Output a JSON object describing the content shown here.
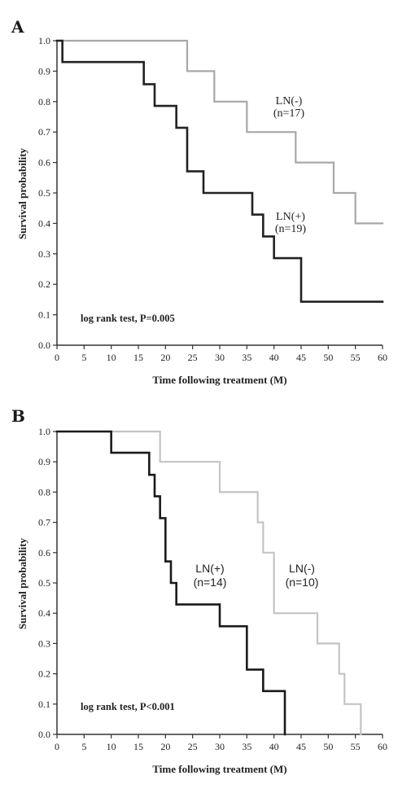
{
  "chart_data": [
    {
      "type": "line",
      "panel": "A",
      "xlabel": "Time following treatment (M)",
      "ylabel": "Survival probability",
      "xlim": [
        0,
        60
      ],
      "ylim": [
        0,
        1
      ],
      "x_ticks": [
        "0",
        "5",
        "10",
        "15",
        "20",
        "25",
        "30",
        "35",
        "40",
        "45",
        "50",
        "55",
        "60"
      ],
      "y_ticks": [
        "0.0",
        "0.1",
        "0.2",
        "0.3",
        "0.4",
        "0.5",
        "0.6",
        "0.7",
        "0.8",
        "0.9",
        "1.0"
      ],
      "annotation": "log rank test, P=0.005",
      "series": [
        {
          "group_label": "LN(-)",
          "n_label": "(n=17)",
          "color": "#a8a8a8",
          "steps": [
            [
              0,
              1.0
            ],
            [
              24,
              0.9
            ],
            [
              29,
              0.8
            ],
            [
              35,
              0.7
            ],
            [
              44,
              0.6
            ],
            [
              51,
              0.5
            ],
            [
              55,
              0.4
            ],
            [
              60,
              0.4
            ]
          ]
        },
        {
          "group_label": "LN(+)",
          "n_label": "(n=19)",
          "color": "#222222",
          "steps": [
            [
              0,
              1.0
            ],
            [
              1,
              0.93
            ],
            [
              16,
              0.857
            ],
            [
              18,
              0.786
            ],
            [
              22,
              0.714
            ],
            [
              24,
              0.571
            ],
            [
              27,
              0.5
            ],
            [
              36,
              0.429
            ],
            [
              38,
              0.357
            ],
            [
              40,
              0.286
            ],
            [
              45,
              0.143
            ],
            [
              60,
              0.143
            ]
          ]
        }
      ]
    },
    {
      "type": "line",
      "panel": "B",
      "xlabel": "Time following treatment (M)",
      "ylabel": "Survival probability",
      "xlim": [
        0,
        60
      ],
      "ylim": [
        0,
        1
      ],
      "x_ticks": [
        "0",
        "5",
        "10",
        "15",
        "20",
        "25",
        "30",
        "35",
        "40",
        "45",
        "50",
        "55",
        "60"
      ],
      "y_ticks": [
        "0.0",
        "0.1",
        "0.2",
        "0.3",
        "0.4",
        "0.5",
        "0.6",
        "0.7",
        "0.8",
        "0.9",
        "1.0"
      ],
      "annotation": "log rank test, P<0.001",
      "series": [
        {
          "group_label": "LN(-)",
          "n_label": "(n=10)",
          "color": "#c4c4c4",
          "steps": [
            [
              0,
              1.0
            ],
            [
              19,
              0.9
            ],
            [
              30,
              0.8
            ],
            [
              37,
              0.7
            ],
            [
              38,
              0.6
            ],
            [
              40,
              0.4
            ],
            [
              48,
              0.3
            ],
            [
              52,
              0.2
            ],
            [
              53,
              0.1
            ],
            [
              56,
              0.0
            ]
          ]
        },
        {
          "group_label": "LN(+)",
          "n_label": "(n=14)",
          "color": "#1a1a1a",
          "steps": [
            [
              0,
              1.0
            ],
            [
              10,
              0.93
            ],
            [
              17,
              0.857
            ],
            [
              18,
              0.786
            ],
            [
              19,
              0.714
            ],
            [
              20,
              0.571
            ],
            [
              21,
              0.5
            ],
            [
              22,
              0.429
            ],
            [
              30,
              0.357
            ],
            [
              35,
              0.214
            ],
            [
              38,
              0.143
            ],
            [
              42,
              0.0
            ]
          ]
        }
      ]
    }
  ]
}
